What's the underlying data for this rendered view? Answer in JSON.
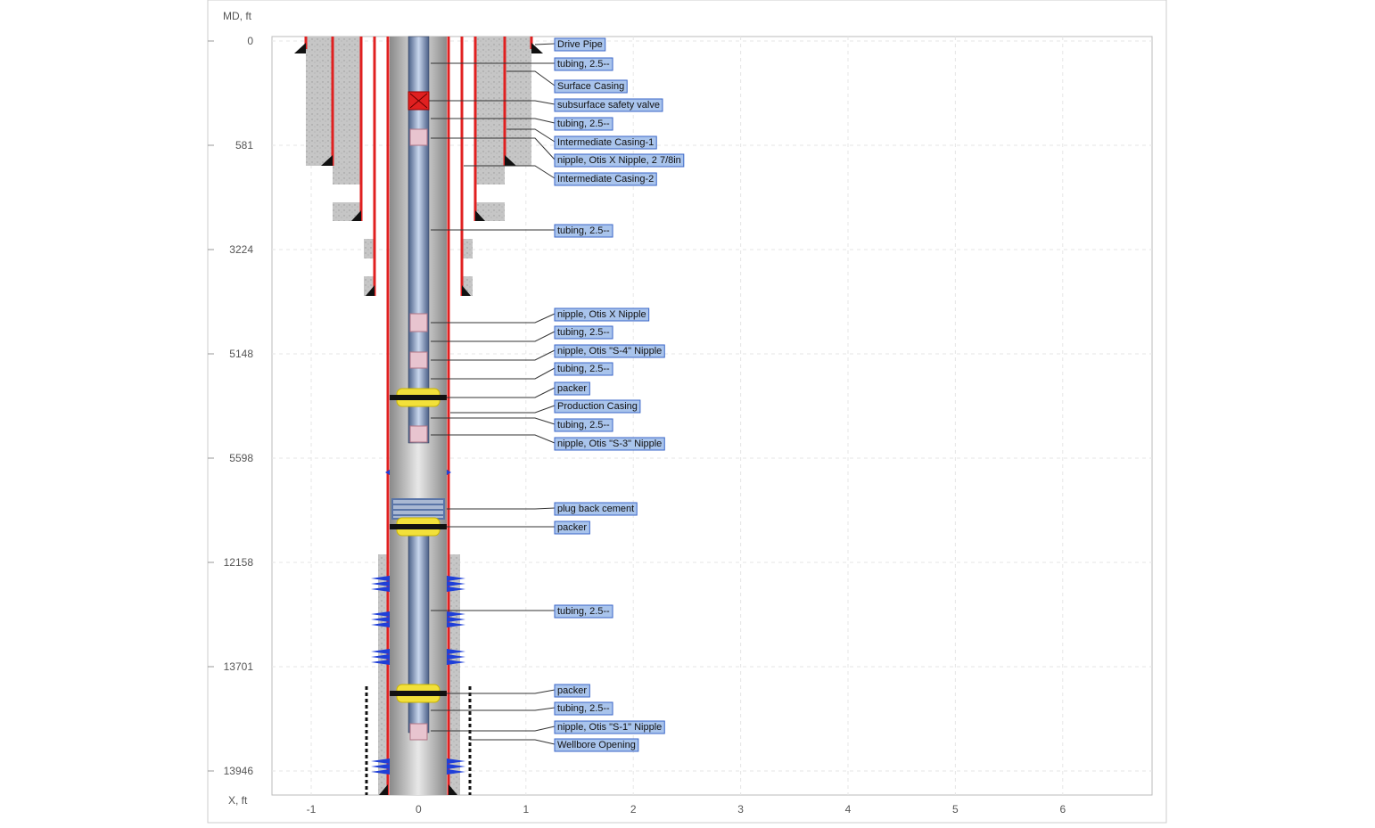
{
  "axes": {
    "y_title": "MD, ft",
    "x_title": "X, ft",
    "y_ticks": [
      "0",
      "581",
      "3224",
      "5148",
      "5598",
      "12158",
      "13701",
      "13946"
    ],
    "x_ticks": [
      "-1",
      "0",
      "1",
      "2",
      "3",
      "4",
      "5",
      "6"
    ]
  },
  "labels": [
    "Drive Pipe",
    "tubing, 2.5--",
    "Surface Casing",
    "subsurface safety valve",
    "tubing, 2.5--",
    "Intermediate Casing-1",
    "nipple, Otis X Nipple, 2 7/8in",
    "Intermediate Casing-2",
    "tubing, 2.5--",
    "nipple, Otis X Nipple",
    "tubing, 2.5--",
    "nipple, Otis \"S-4\" Nipple",
    "tubing, 2.5--",
    "packer",
    "Production Casing",
    "tubing, 2.5--",
    "nipple, Otis \"S-3\" Nipple",
    "plug back cement",
    "packer",
    "tubing, 2.5--",
    "packer",
    "tubing, 2.5--",
    "nipple, Otis \"S-1\" Nipple",
    "Wellbore Opening"
  ]
}
